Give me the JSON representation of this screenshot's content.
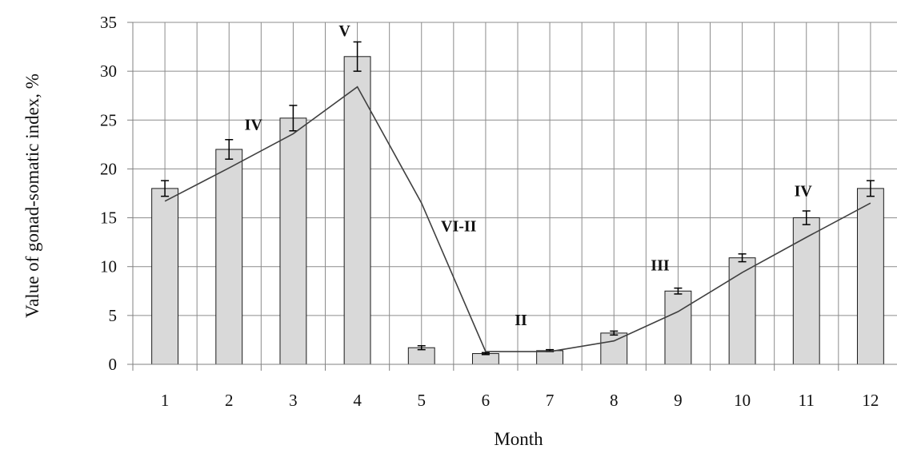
{
  "chart_data": {
    "type": "bar",
    "title": "",
    "xlabel": "Month",
    "ylabel": "Value of gonad-somatic index, %",
    "categories": [
      "1",
      "2",
      "3",
      "4",
      "5",
      "6",
      "7",
      "8",
      "9",
      "10",
      "11",
      "12"
    ],
    "ylim": [
      0,
      35
    ],
    "yticks": [
      0,
      5,
      10,
      15,
      20,
      25,
      30,
      35
    ],
    "grid": true,
    "legend": "none",
    "series": [
      {
        "type": "bar",
        "values": [
          18.0,
          22.0,
          25.2,
          31.5,
          1.7,
          1.1,
          1.4,
          3.2,
          7.5,
          10.9,
          15.0,
          18.0
        ],
        "errors": [
          0.8,
          1.0,
          1.3,
          1.5,
          0.2,
          0.1,
          0.1,
          0.2,
          0.3,
          0.4,
          0.7,
          0.8
        ],
        "color": "#d9d9d9"
      },
      {
        "type": "line",
        "values": [
          16.7,
          20.1,
          23.6,
          28.4,
          16.5,
          1.3,
          1.3,
          2.4,
          5.4,
          9.4,
          13.0,
          16.5
        ],
        "color": "#404040"
      }
    ],
    "annotations": [
      {
        "text": "IV",
        "x": 2.38,
        "y": 24.0
      },
      {
        "text": "V",
        "x": 3.8,
        "y": 33.6
      },
      {
        "text": "VI-II",
        "x": 5.58,
        "y": 13.6
      },
      {
        "text": "II",
        "x": 6.55,
        "y": 4.0
      },
      {
        "text": "III",
        "x": 8.72,
        "y": 9.6
      },
      {
        "text": "IV",
        "x": 10.95,
        "y": 17.2
      }
    ]
  }
}
